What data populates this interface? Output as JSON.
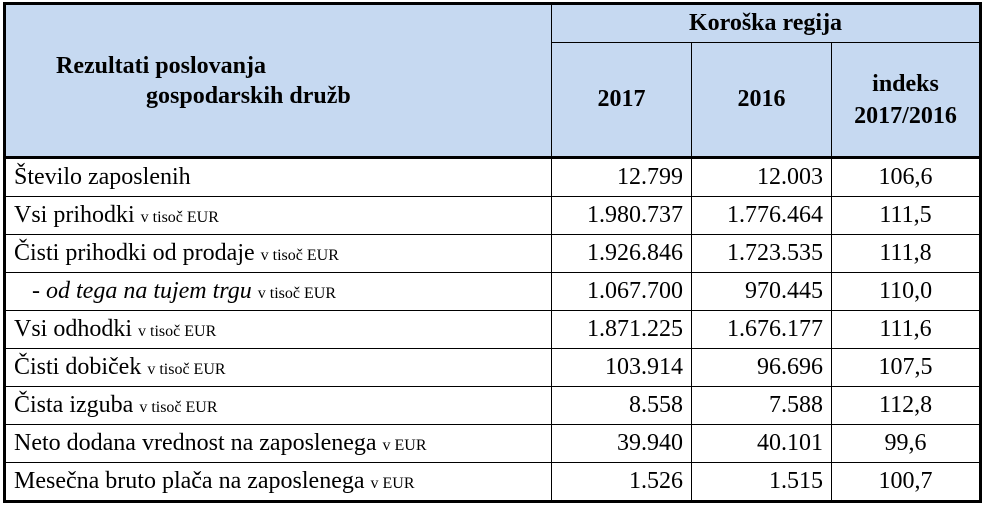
{
  "header": {
    "title_line1": "Rezultati poslovanja",
    "title_line2": "gospodarskih družb",
    "region": "Koroška regija",
    "col_2017": "2017",
    "col_2016": "2016",
    "col_index_line1": "indeks",
    "col_index_line2": "2017/2016"
  },
  "rows": [
    {
      "label": "Število zaposlenih",
      "unit": "",
      "v2017": "12.799",
      "v2016": "12.003",
      "index": "106,6"
    },
    {
      "label": "Vsi prihodki",
      "unit": "v tisoč EUR",
      "v2017": "1.980.737",
      "v2016": "1.776.464",
      "index": "111,5"
    },
    {
      "label": "Čisti prihodki od prodaje",
      "unit": "v tisoč EUR",
      "v2017": "1.926.846",
      "v2016": "1.723.535",
      "index": "111,8"
    },
    {
      "label": "- ",
      "label_italic": "od tega na tujem trgu",
      "unit": "v tisoč EUR",
      "v2017": "1.067.700",
      "v2016": "970.445",
      "index": "110,0"
    },
    {
      "label": "Vsi odhodki",
      "unit": "v tisoč EUR",
      "v2017": "1.871.225",
      "v2016": "1.676.177",
      "index": "111,6"
    },
    {
      "label": "Čisti dobiček",
      "unit": "v tisoč EUR",
      "v2017": "103.914",
      "v2016": "96.696",
      "index": "107,5"
    },
    {
      "label": "Čista izguba",
      "unit": "v tisoč EUR",
      "v2017": "8.558",
      "v2016": "7.588",
      "index": "112,8"
    },
    {
      "label": "Neto dodana vrednost na zaposlenega",
      "unit": "v EUR",
      "v2017": "39.940",
      "v2016": "40.101",
      "index": "99,6"
    },
    {
      "label": "Mesečna bruto plača na zaposlenega",
      "unit": "v EUR",
      "v2017": "1.526",
      "v2016": "1.515",
      "index": "100,7"
    }
  ]
}
